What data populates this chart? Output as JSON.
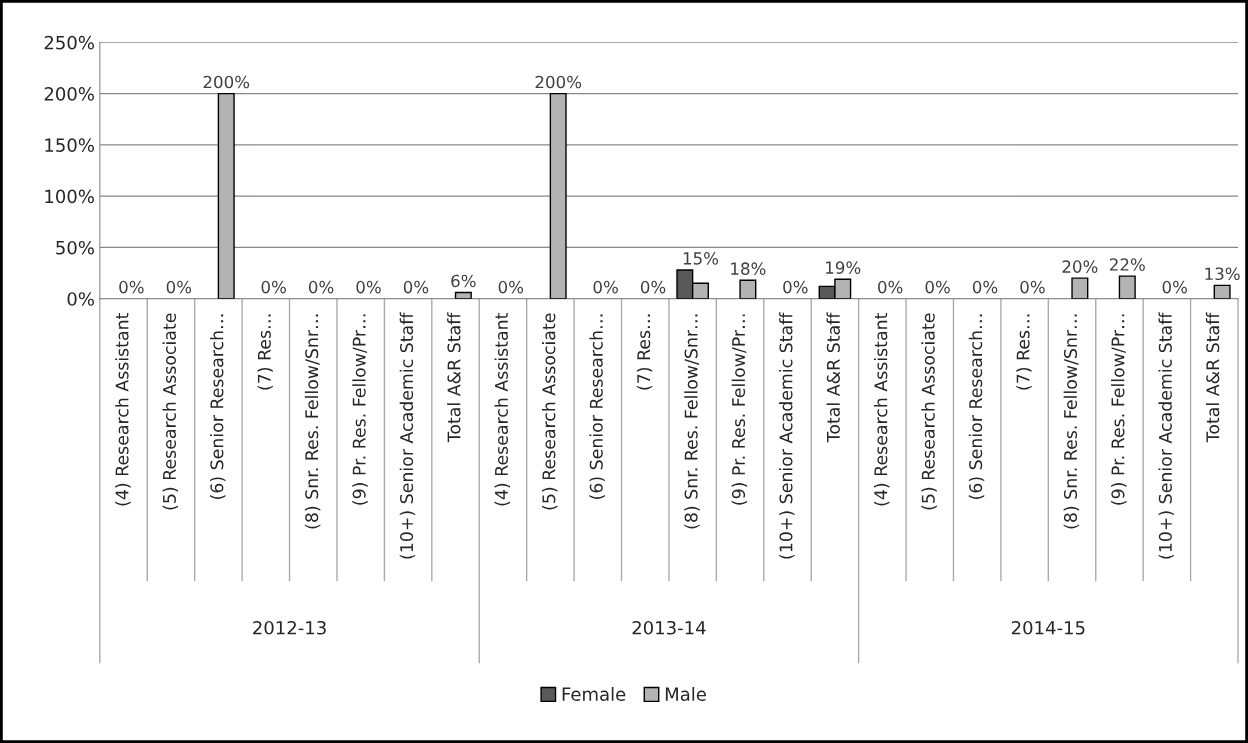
{
  "chart_data": {
    "type": "bar",
    "categories": [
      "(4) Research Assistant",
      "(5) Research Associate",
      "(6) Senior Research…",
      "(7) Res…",
      "(8) Snr. Res. Fellow/Snr…",
      "(9) Pr. Res. Fellow/Pr…",
      "(10+) Senior Academic Staff",
      "Total A&R Staff",
      "(4) Research Assistant",
      "(5) Research Associate",
      "(6) Senior Research…",
      "(7) Res…",
      "(8) Snr. Res. Fellow/Snr…",
      "(9) Pr. Res. Fellow/Pr…",
      "(10+) Senior Academic Staff",
      "Total A&R Staff",
      "(4) Research Assistant",
      "(5) Research Associate",
      "(6) Senior Research…",
      "(7) Res…",
      "(8) Snr. Res. Fellow/Snr…",
      "(9) Pr. Res. Fellow/Pr…",
      "(10+) Senior Academic Staff",
      "Total A&R Staff"
    ],
    "series": [
      {
        "name": "Female",
        "color": "#595959",
        "values": [
          0,
          0,
          0,
          0,
          0,
          0,
          0,
          0,
          0,
          0,
          0,
          0,
          28,
          0,
          0,
          12,
          0,
          0,
          0,
          0,
          0,
          0,
          0,
          0
        ]
      },
      {
        "name": "Male",
        "color": "#b3b3b3",
        "values": [
          0,
          0,
          200,
          0,
          0,
          0,
          0,
          6,
          0,
          200,
          0,
          0,
          15,
          18,
          0,
          19,
          0,
          0,
          0,
          0,
          20,
          22,
          0,
          13
        ],
        "value_labels": [
          "0%",
          "0%",
          "200%",
          "0%",
          "0%",
          "0%",
          "0%",
          "6%",
          "0%",
          "200%",
          "0%",
          "0%",
          "15%",
          "18%",
          "0%",
          "19%",
          "0%",
          "0%",
          "0%",
          "0%",
          "20%",
          "22%",
          "0%",
          "13%"
        ]
      }
    ],
    "ylim": [
      0,
      250
    ],
    "yticks": [
      {
        "value": 0,
        "label": "0%"
      },
      {
        "value": 50,
        "label": "50%"
      },
      {
        "value": 100,
        "label": "100%"
      },
      {
        "value": 150,
        "label": "150%"
      },
      {
        "value": 200,
        "label": "200%"
      },
      {
        "value": 250,
        "label": "250%"
      }
    ],
    "grid": "y",
    "legend": "bottom",
    "annotations": [
      "2012-13",
      "2013-14",
      "2014-15"
    ]
  }
}
